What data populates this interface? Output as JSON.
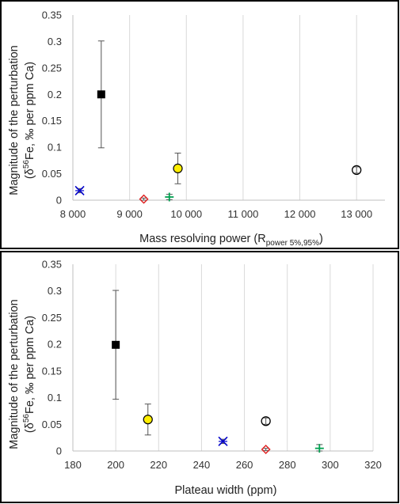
{
  "chart_data": [
    {
      "type": "scatter",
      "xlabel": "Mass resolving power (R",
      "xlabel_sub": "power 5%,95%",
      "xlabel_end": ")",
      "ylabel_line1": "Magnitude of the perturbation",
      "ylabel_line2_pre": "(δ",
      "ylabel_line2_sup": "56",
      "ylabel_line2_post": "Fe, ‰ per ppm Ca)",
      "xlim": [
        8000,
        13500
      ],
      "ylim": [
        0,
        0.35
      ],
      "x_ticks": [
        8000,
        9000,
        10000,
        11000,
        12000,
        13000
      ],
      "x_tick_labels": [
        "8 000",
        "9 000",
        "10 000",
        "11 000",
        "12 000",
        "13 000"
      ],
      "y_ticks": [
        0,
        0.05,
        0.1,
        0.15,
        0.2,
        0.25,
        0.3,
        0.35
      ],
      "y_tick_labels": [
        "0",
        "0.05",
        "0.1",
        "0.15",
        "0.2",
        "0.25",
        "0.3",
        "0.35"
      ],
      "grid": "vertical",
      "points": [
        {
          "x": 8500,
          "y": 0.2,
          "err": 0.101,
          "marker": "square",
          "color": "#000000"
        },
        {
          "x": 9850,
          "y": 0.06,
          "err": 0.029,
          "marker": "circle-filled",
          "color": "#ffee00"
        },
        {
          "x": 13000,
          "y": 0.057,
          "err": 0.006,
          "marker": "circle-open",
          "color": "#000000"
        },
        {
          "x": 8120,
          "y": 0.018,
          "err": 0.004,
          "marker": "x-star",
          "color": "#0000cc"
        },
        {
          "x": 9250,
          "y": 0.002,
          "err": 0.002,
          "marker": "diamond",
          "color": "#e02020"
        },
        {
          "x": 9700,
          "y": 0.006,
          "err": 0.005,
          "marker": "plus",
          "color": "#00a050"
        }
      ]
    },
    {
      "type": "scatter",
      "xlabel": "Plateau width (ppm)",
      "ylabel_line1": "Magnitude of the perturbation",
      "ylabel_line2_pre": "(δ",
      "ylabel_line2_sup": "56",
      "ylabel_line2_post": "Fe, ‰ per ppm Ca)",
      "xlim": [
        180,
        320
      ],
      "ylim": [
        0,
        0.35
      ],
      "x_ticks": [
        180,
        200,
        220,
        240,
        260,
        280,
        300,
        320
      ],
      "x_tick_labels": [
        "180",
        "200",
        "220",
        "240",
        "260",
        "280",
        "300",
        "320"
      ],
      "y_ticks": [
        0,
        0.05,
        0.1,
        0.15,
        0.2,
        0.25,
        0.3,
        0.35
      ],
      "y_tick_labels": [
        "0",
        "0.05",
        "0.1",
        "0.15",
        "0.2",
        "0.25",
        "0.3",
        "0.35"
      ],
      "grid": "vertical",
      "points": [
        {
          "x": 200,
          "y": 0.199,
          "err": 0.102,
          "marker": "square",
          "color": "#000000"
        },
        {
          "x": 215,
          "y": 0.059,
          "err": 0.029,
          "marker": "circle-filled",
          "color": "#ffee00"
        },
        {
          "x": 270,
          "y": 0.056,
          "err": 0.006,
          "marker": "circle-open",
          "color": "#000000"
        },
        {
          "x": 250,
          "y": 0.018,
          "err": 0.004,
          "marker": "x-star",
          "color": "#0000cc"
        },
        {
          "x": 270,
          "y": 0.003,
          "err": 0.002,
          "marker": "diamond",
          "color": "#e02020"
        },
        {
          "x": 295,
          "y": 0.005,
          "err": 0.007,
          "marker": "plus",
          "color": "#00a050"
        }
      ]
    }
  ]
}
